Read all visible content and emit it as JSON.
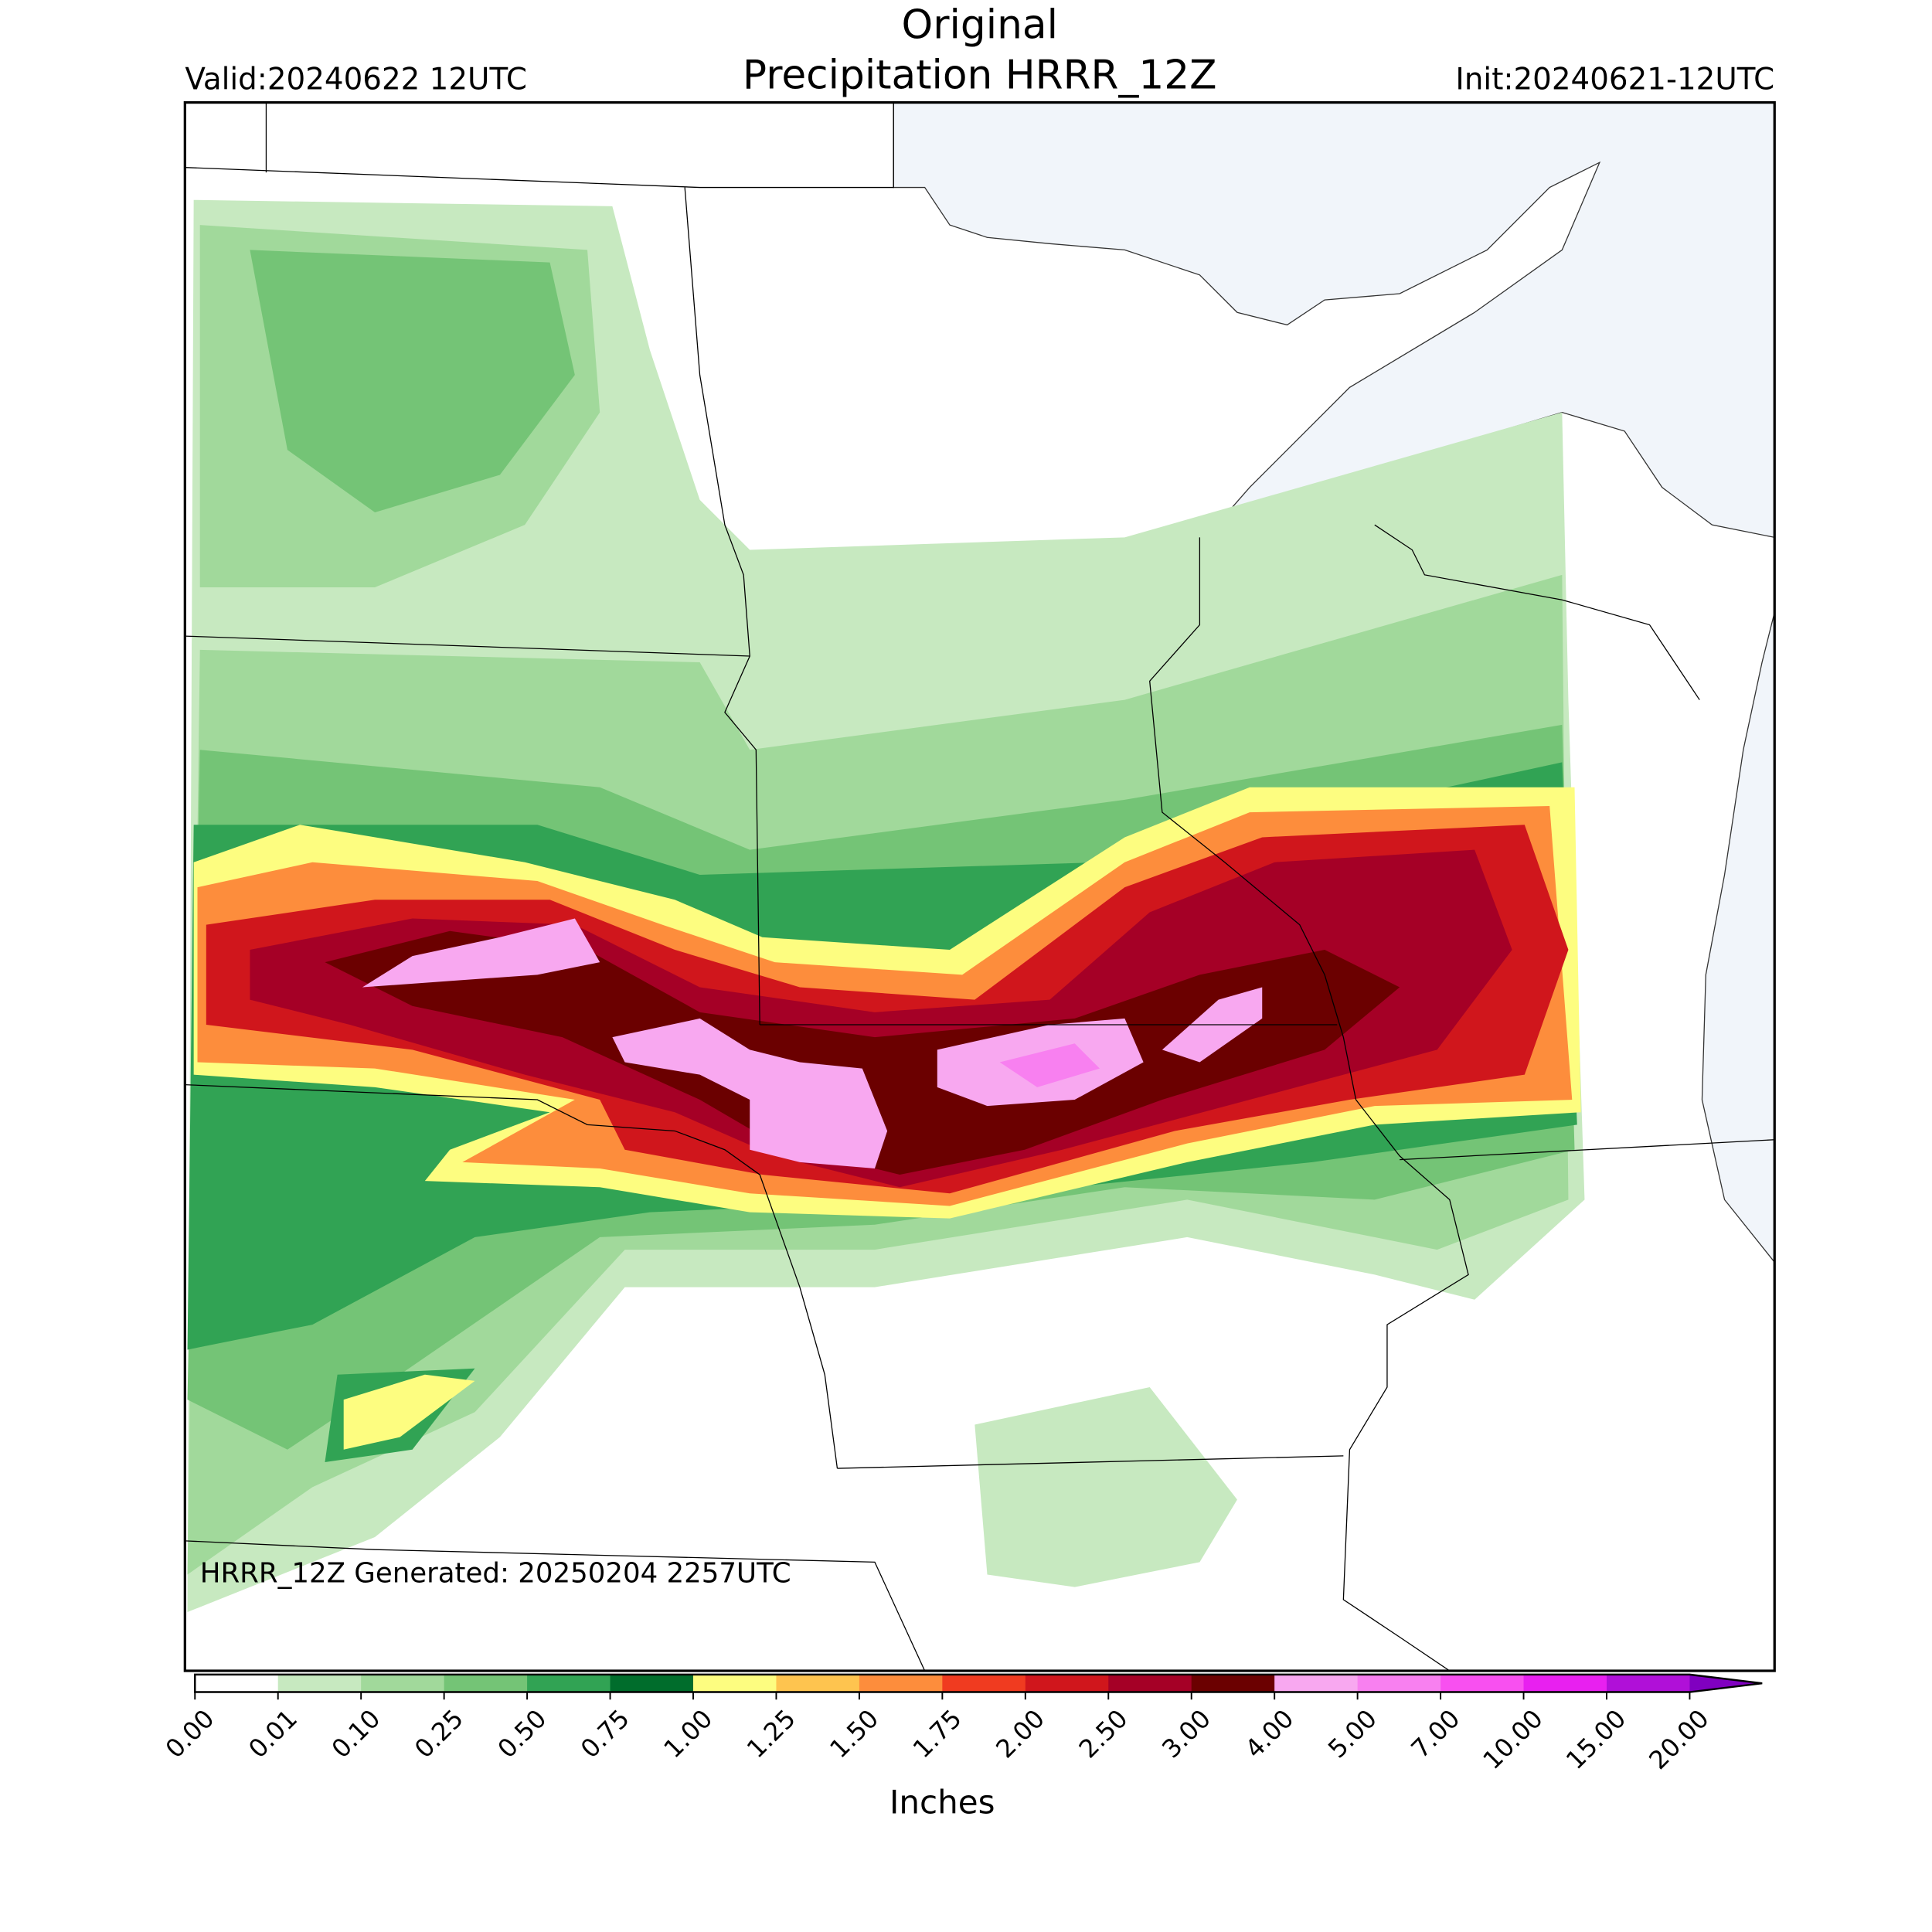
{
  "title": [
    "Original",
    "Precipitation HRRR_12Z"
  ],
  "valid": "Valid:20240622 12UTC",
  "init": "Init:20240621-12UTC",
  "footer": "HRRR_12Z Generated: 20250204 2257UTC",
  "colorbar": {
    "label": "Inches",
    "ticks": [
      {
        "value": 0,
        "label": "0.00"
      },
      {
        "value": 0.01,
        "label": "0.01"
      },
      {
        "value": 0.1,
        "label": "0.10"
      },
      {
        "value": 0.25,
        "label": "0.25"
      },
      {
        "value": 0.5,
        "label": "0.50"
      },
      {
        "value": 0.75,
        "label": "0.75"
      },
      {
        "value": 1,
        "label": "1.00"
      },
      {
        "value": 1.25,
        "label": "1.25"
      },
      {
        "value": 1.5,
        "label": "1.50"
      },
      {
        "value": 1.75,
        "label": "1.75"
      },
      {
        "value": 2,
        "label": "2.00"
      },
      {
        "value": 2.5,
        "label": "2.50"
      },
      {
        "value": 3,
        "label": "3.00"
      },
      {
        "value": 4,
        "label": "4.00"
      },
      {
        "value": 5,
        "label": "5.00"
      },
      {
        "value": 7,
        "label": "7.00"
      },
      {
        "value": 10,
        "label": "10.00"
      },
      {
        "value": 15,
        "label": "15.00"
      },
      {
        "value": 20,
        "label": "20.00"
      }
    ],
    "colors": [
      "#ffffff",
      "#c7e9c0",
      "#a1d99b",
      "#74c476",
      "#31a354",
      "#006d2c",
      "#fdfd80",
      "#fec44f",
      "#fd8d3c",
      "#f03b20",
      "#d0161c",
      "#a50026",
      "#6b0000",
      "#f8a8f0",
      "#f880f0",
      "#f850f0",
      "#e820f0",
      "#b010d8"
    ],
    "extend_color": "#8000c0"
  }
}
